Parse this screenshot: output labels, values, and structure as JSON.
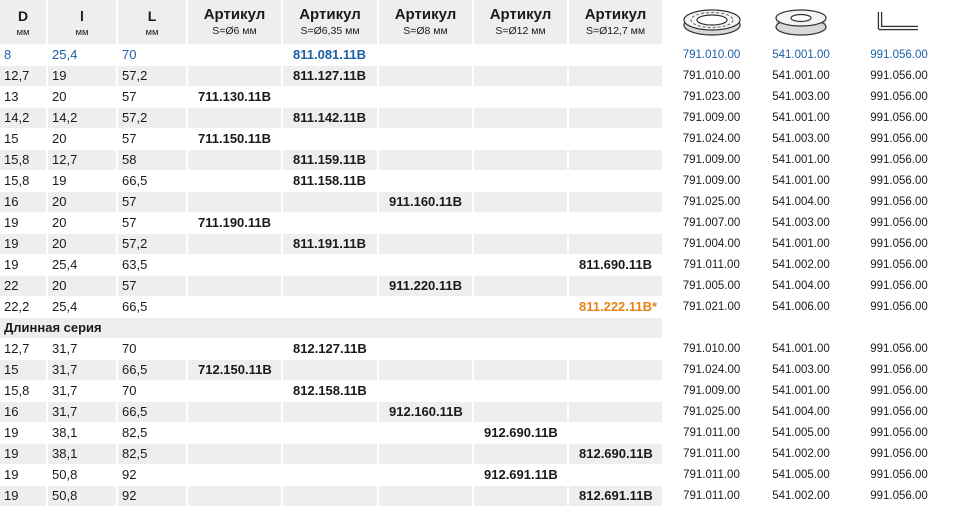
{
  "header": {
    "dims": [
      {
        "label": "D",
        "unit": "мм"
      },
      {
        "label": "l",
        "unit": "мм"
      },
      {
        "label": "L",
        "unit": "мм"
      }
    ],
    "articles": [
      {
        "label": "Артикул",
        "size": "S=Ø6 мм"
      },
      {
        "label": "Артикул",
        "size": "S=Ø6,35 мм"
      },
      {
        "label": "Артикул",
        "size": "S=Ø8 мм"
      },
      {
        "label": "Артикул",
        "size": "S=Ø12 мм"
      },
      {
        "label": "Артикул",
        "size": "S=Ø12,7 мм"
      }
    ],
    "icons": [
      "bearing-icon",
      "ring-icon",
      "hex-key-icon"
    ]
  },
  "rows": [
    {
      "d": "8",
      "l": "25,4",
      "L": "70",
      "a1": "",
      "a2": "811.081.11B",
      "a3": "",
      "a4": "",
      "a5": "",
      "p1": "791.010.00",
      "p2": "541.001.00",
      "p3": "991.056.00",
      "highlight": "blue"
    },
    {
      "d": "12,7",
      "l": "19",
      "L": "57,2",
      "a1": "",
      "a2": "811.127.11B",
      "a3": "",
      "a4": "",
      "a5": "",
      "p1": "791.010.00",
      "p2": "541.001.00",
      "p3": "991.056.00"
    },
    {
      "d": "13",
      "l": "20",
      "L": "57",
      "a1": "711.130.11B",
      "a2": "",
      "a3": "",
      "a4": "",
      "a5": "",
      "p1": "791.023.00",
      "p2": "541.003.00",
      "p3": "991.056.00"
    },
    {
      "d": "14,2",
      "l": "14,2",
      "L": "57,2",
      "a1": "",
      "a2": "811.142.11B",
      "a3": "",
      "a4": "",
      "a5": "",
      "p1": "791.009.00",
      "p2": "541.001.00",
      "p3": "991.056.00"
    },
    {
      "d": "15",
      "l": "20",
      "L": "57",
      "a1": "711.150.11B",
      "a2": "",
      "a3": "",
      "a4": "",
      "a5": "",
      "p1": "791.024.00",
      "p2": "541.003.00",
      "p3": "991.056.00"
    },
    {
      "d": "15,8",
      "l": "12,7",
      "L": "58",
      "a1": "",
      "a2": "811.159.11B",
      "a3": "",
      "a4": "",
      "a5": "",
      "p1": "791.009.00",
      "p2": "541.001.00",
      "p3": "991.056.00"
    },
    {
      "d": "15,8",
      "l": "19",
      "L": "66,5",
      "a1": "",
      "a2": "811.158.11B",
      "a3": "",
      "a4": "",
      "a5": "",
      "p1": "791.009.00",
      "p2": "541.001.00",
      "p3": "991.056.00"
    },
    {
      "d": "16",
      "l": "20",
      "L": "57",
      "a1": "",
      "a2": "",
      "a3": "911.160.11B",
      "a4": "",
      "a5": "",
      "p1": "791.025.00",
      "p2": "541.004.00",
      "p3": "991.056.00"
    },
    {
      "d": "19",
      "l": "20",
      "L": "57",
      "a1": "711.190.11B",
      "a2": "",
      "a3": "",
      "a4": "",
      "a5": "",
      "p1": "791.007.00",
      "p2": "541.003.00",
      "p3": "991.056.00"
    },
    {
      "d": "19",
      "l": "20",
      "L": "57,2",
      "a1": "",
      "a2": "811.191.11B",
      "a3": "",
      "a4": "",
      "a5": "",
      "p1": "791.004.00",
      "p2": "541.001.00",
      "p3": "991.056.00"
    },
    {
      "d": "19",
      "l": "25,4",
      "L": "63,5",
      "a1": "",
      "a2": "",
      "a3": "",
      "a4": "",
      "a5": "811.690.11B",
      "p1": "791.011.00",
      "p2": "541.002.00",
      "p3": "991.056.00"
    },
    {
      "d": "22",
      "l": "20",
      "L": "57",
      "a1": "",
      "a2": "",
      "a3": "911.220.11B",
      "a4": "",
      "a5": "",
      "p1": "791.005.00",
      "p2": "541.004.00",
      "p3": "991.056.00"
    },
    {
      "d": "22,2",
      "l": "25,4",
      "L": "66,5",
      "a1": "",
      "a2": "",
      "a3": "",
      "a4": "",
      "a5": "811.222.11B*",
      "p1": "791.021.00",
      "p2": "541.006.00",
      "p3": "991.056.00",
      "highlight5": "orange"
    }
  ],
  "section_label": "Длинная серия",
  "rows_long": [
    {
      "d": "12,7",
      "l": "31,7",
      "L": "70",
      "a1": "",
      "a2": "812.127.11B",
      "a3": "",
      "a4": "",
      "a5": "",
      "p1": "791.010.00",
      "p2": "541.001.00",
      "p3": "991.056.00"
    },
    {
      "d": "15",
      "l": "31,7",
      "L": "66,5",
      "a1": "712.150.11B",
      "a2": "",
      "a3": "",
      "a4": "",
      "a5": "",
      "p1": "791.024.00",
      "p2": "541.003.00",
      "p3": "991.056.00"
    },
    {
      "d": "15,8",
      "l": "31,7",
      "L": "70",
      "a1": "",
      "a2": "812.158.11B",
      "a3": "",
      "a4": "",
      "a5": "",
      "p1": "791.009.00",
      "p2": "541.001.00",
      "p3": "991.056.00"
    },
    {
      "d": "16",
      "l": "31,7",
      "L": "66,5",
      "a1": "",
      "a2": "",
      "a3": "912.160.11B",
      "a4": "",
      "a5": "",
      "p1": "791.025.00",
      "p2": "541.004.00",
      "p3": "991.056.00"
    },
    {
      "d": "19",
      "l": "38,1",
      "L": "82,5",
      "a1": "",
      "a2": "",
      "a3": "",
      "a4": "912.690.11B",
      "a5": "",
      "p1": "791.011.00",
      "p2": "541.005.00",
      "p3": "991.056.00"
    },
    {
      "d": "19",
      "l": "38,1",
      "L": "82,5",
      "a1": "",
      "a2": "",
      "a3": "",
      "a4": "",
      "a5": "812.690.11B",
      "p1": "791.011.00",
      "p2": "541.002.00",
      "p3": "991.056.00"
    },
    {
      "d": "19",
      "l": "50,8",
      "L": "92",
      "a1": "",
      "a2": "",
      "a3": "",
      "a4": "912.691.11B",
      "a5": "",
      "p1": "791.011.00",
      "p2": "541.005.00",
      "p3": "991.056.00"
    },
    {
      "d": "19",
      "l": "50,8",
      "L": "92",
      "a1": "",
      "a2": "",
      "a3": "",
      "a4": "",
      "a5": "812.691.11B",
      "p1": "791.011.00",
      "p2": "541.002.00",
      "p3": "991.056.00"
    }
  ],
  "colors": {
    "highlight_blue": "#1d5fa8",
    "highlight_orange": "#e8821b",
    "shade": "#eeeeee"
  }
}
